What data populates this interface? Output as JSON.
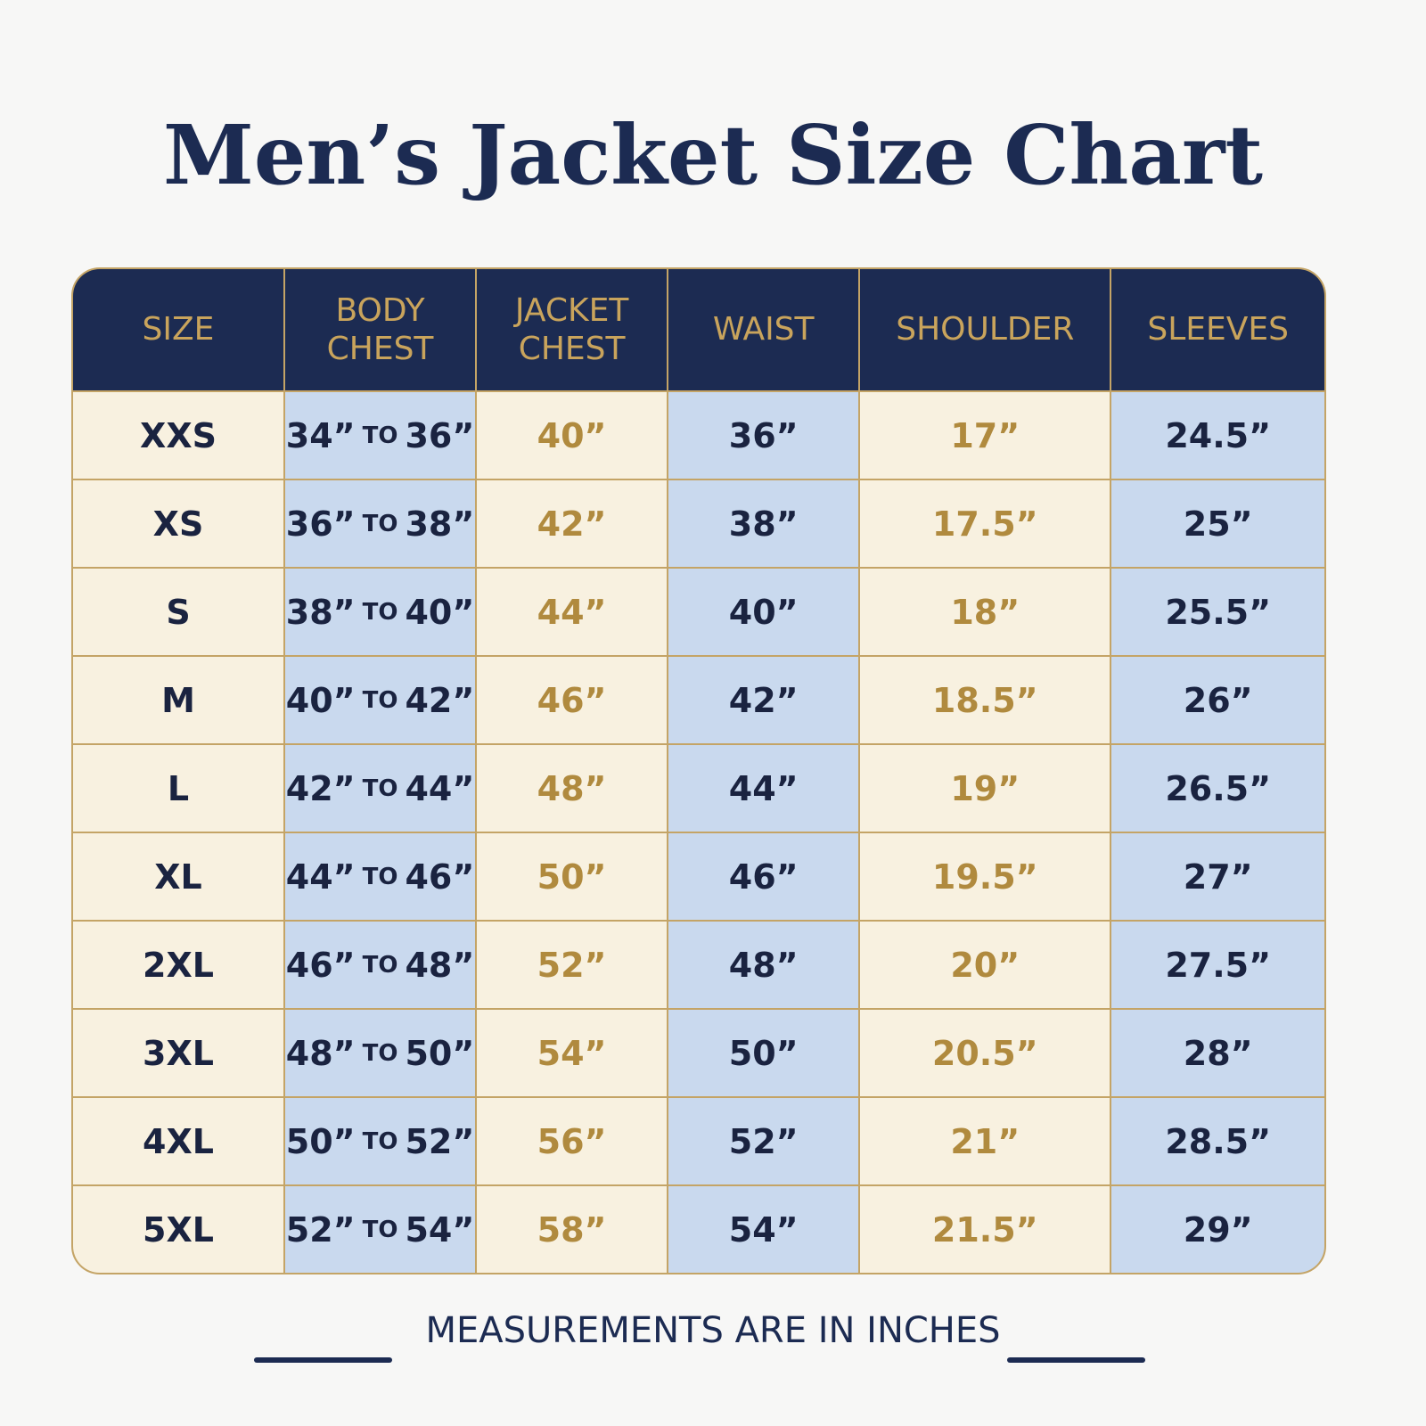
{
  "title": "Men’s Jacket Size Chart",
  "table": {
    "header": [
      "SIZE",
      "BODY CHEST",
      "JACKET CHEST",
      "WAIST",
      "SHOULDER",
      "SLEEVES"
    ],
    "rows": [
      [
        "XXS",
        "34” TO 36”",
        "40”",
        "36”",
        "17”",
        "24.5”"
      ],
      [
        "XS",
        "36” TO 38”",
        "42”",
        "38”",
        "17.5”",
        "25”"
      ],
      [
        "S",
        "38” TO 40”",
        "44”",
        "40”",
        "18”",
        "25.5”"
      ],
      [
        "M",
        "40” TO 42”",
        "46”",
        "42”",
        "18.5”",
        "26”"
      ],
      [
        "L",
        "42” TO 44”",
        "48”",
        "44”",
        "19”",
        "26.5”"
      ],
      [
        "XL",
        "44” TO 46”",
        "50”",
        "46”",
        "19.5”",
        "27”"
      ],
      [
        "2XL",
        "46” TO 48”",
        "52”",
        "48”",
        "20”",
        "27.5”"
      ],
      [
        "3XL",
        "48” TO 50”",
        "54”",
        "50”",
        "20.5”",
        "28”"
      ],
      [
        "4XL",
        "50” TO 52”",
        "56”",
        "52”",
        "21”",
        "28.5”"
      ],
      [
        "5XL",
        "52” TO 54”",
        "58”",
        "54”",
        "21.5”",
        "29”"
      ]
    ]
  },
  "footer": "MEASUREMENTS ARE IN INCHES"
}
